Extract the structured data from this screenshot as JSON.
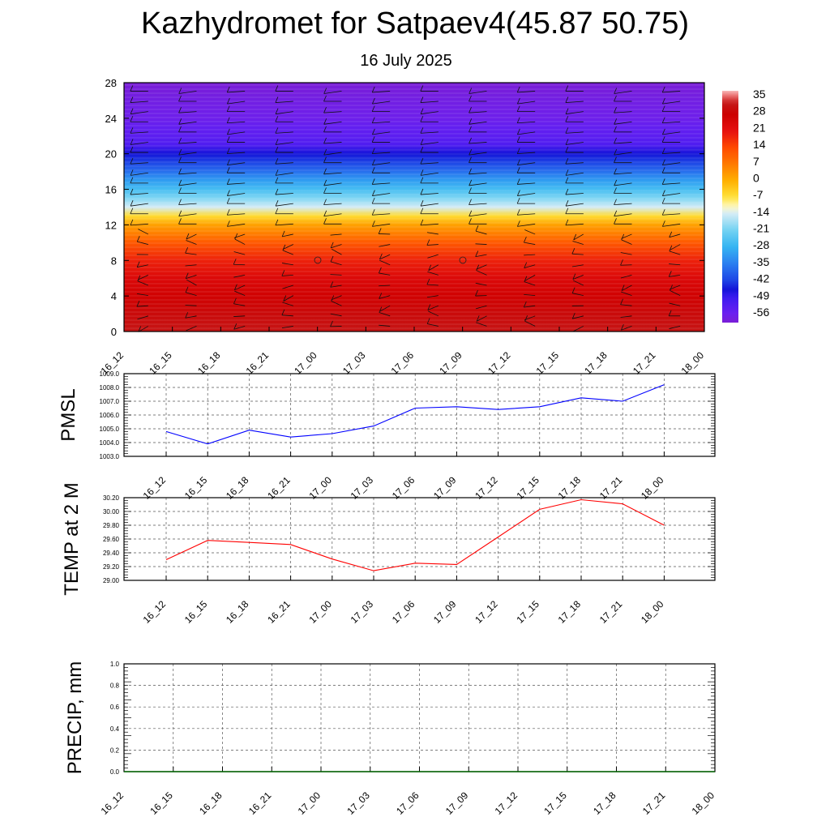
{
  "title": "Kazhydromet for Satpaev4(45.87 50.75)",
  "subtitle": "16 July 2025",
  "colors": {
    "pressure_line": "#0000ff",
    "temp_line": "#ff0000",
    "precip_line": "#006400"
  },
  "chart_data": [
    {
      "type": "heatmap",
      "name": "vertical-temperature-wind-cross-section",
      "x": [
        "16_12",
        "16_15",
        "16_18",
        "16_21",
        "17_00",
        "17_03",
        "17_06",
        "17_09",
        "17_12",
        "17_15",
        "17_18",
        "17_21",
        "18_00"
      ],
      "ylim": [
        0,
        28
      ],
      "yticks": [
        "0",
        "4",
        "8",
        "12",
        "16",
        "20",
        "24",
        "28"
      ],
      "colorbar_labels": [
        "35",
        "28",
        "21",
        "14",
        "7",
        "0",
        "-7",
        "-14",
        "-21",
        "-28",
        "-35",
        "-42",
        "-49",
        "-56"
      ],
      "colorbar_range": [
        -60,
        38
      ],
      "temperature_profile_approx": [
        {
          "level": 0,
          "value": 32
        },
        {
          "level": 2,
          "value": 30
        },
        {
          "level": 4,
          "value": 27
        },
        {
          "level": 6,
          "value": 24
        },
        {
          "level": 8,
          "value": 19
        },
        {
          "level": 10,
          "value": 12
        },
        {
          "level": 12,
          "value": 2
        },
        {
          "level": 13,
          "value": -6
        },
        {
          "level": 14,
          "value": -14
        },
        {
          "level": 15,
          "value": -20
        },
        {
          "level": 16,
          "value": -26
        },
        {
          "level": 17,
          "value": -31
        },
        {
          "level": 18,
          "value": -37
        },
        {
          "level": 19,
          "value": -42
        },
        {
          "level": 20,
          "value": -46
        },
        {
          "level": 21,
          "value": -52
        },
        {
          "level": 22,
          "value": -54
        },
        {
          "level": 23,
          "value": -55
        },
        {
          "level": 24,
          "value": -57
        },
        {
          "level": 26,
          "value": -58
        },
        {
          "level": 28,
          "value": -60
        }
      ],
      "wind_barbs": true
    },
    {
      "type": "line",
      "name": "pmsl",
      "ylabel": "PMSL",
      "x": [
        "16_12",
        "16_15",
        "16_18",
        "16_21",
        "17_00",
        "17_03",
        "17_06",
        "17_09",
        "17_12",
        "17_15",
        "17_18",
        "17_21",
        "18_00"
      ],
      "values": [
        1004.8,
        1003.9,
        1004.9,
        1004.4,
        1004.65,
        1005.2,
        1006.5,
        1006.6,
        1006.4,
        1006.6,
        1007.25,
        1007.0,
        1008.2
      ],
      "ylim": [
        1003.0,
        1009.0
      ],
      "yticks": [
        "1003.0",
        "1004.0",
        "1005.0",
        "1006.0",
        "1007.0",
        "1008.0",
        "1009.0"
      ],
      "grid": true
    },
    {
      "type": "line",
      "name": "temp-2m",
      "ylabel": "TEMP at 2 M",
      "x": [
        "16_12",
        "16_15",
        "16_18",
        "16_21",
        "17_00",
        "17_03",
        "17_06",
        "17_09",
        "17_12",
        "17_15",
        "17_18",
        "17_21",
        "18_00"
      ],
      "values": [
        29.3,
        29.58,
        29.55,
        29.52,
        29.31,
        29.14,
        29.25,
        29.23,
        29.63,
        30.03,
        30.17,
        30.11,
        29.8
      ],
      "ylim": [
        29.0,
        30.2
      ],
      "yticks": [
        "29.00",
        "29.20",
        "29.40",
        "29.60",
        "29.80",
        "30.00",
        "30.20"
      ],
      "grid": true
    },
    {
      "type": "line",
      "name": "precip",
      "ylabel": "PRECIP, mm",
      "x": [
        "16_12",
        "16_15",
        "16_18",
        "16_21",
        "17_00",
        "17_03",
        "17_06",
        "17_09",
        "17_12",
        "17_15",
        "17_18",
        "17_21",
        "18_00"
      ],
      "values": [
        0,
        0,
        0,
        0,
        0,
        0,
        0,
        0,
        0,
        0,
        0,
        0,
        0
      ],
      "ylim": [
        0.0,
        1.0
      ],
      "yticks": [
        "0.0",
        "0.2",
        "0.4",
        "0.6",
        "0.8",
        "1.0"
      ],
      "grid": true
    }
  ]
}
